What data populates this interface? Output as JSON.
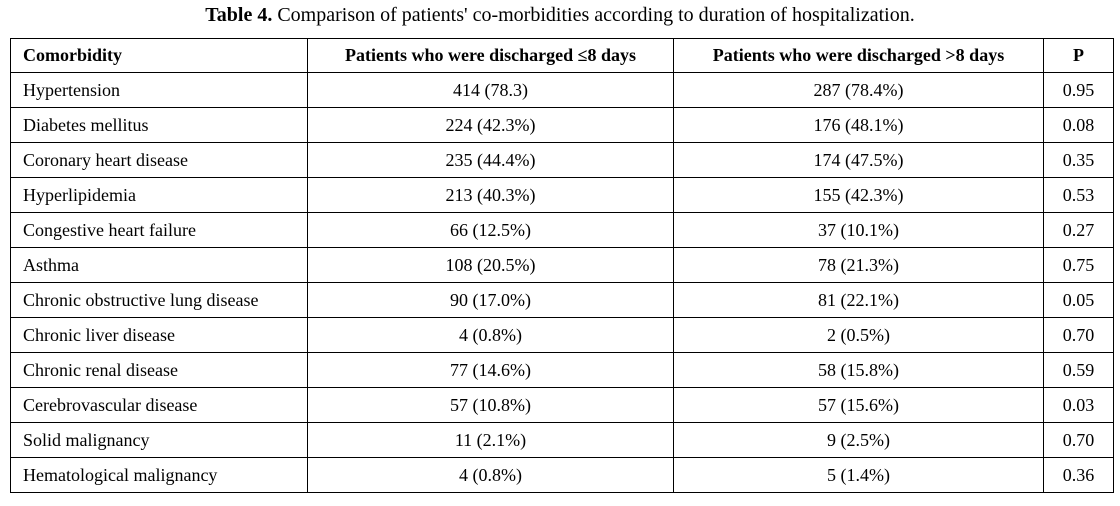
{
  "caption": {
    "label": "Table 4.",
    "text": "Comparison of patients' co-morbidities according to duration of hospitalization."
  },
  "table": {
    "headers": [
      "Comorbidity",
      "Patients who were discharged ≤8 days",
      "Patients who were discharged >8 days",
      "P"
    ],
    "rows": [
      [
        "Hypertension",
        "414 (78.3)",
        "287 (78.4%)",
        "0.95"
      ],
      [
        "Diabetes mellitus",
        "224 (42.3%)",
        "176 (48.1%)",
        "0.08"
      ],
      [
        "Coronary heart disease",
        "235 (44.4%)",
        "174 (47.5%)",
        "0.35"
      ],
      [
        "Hyperlipidemia",
        "213 (40.3%)",
        "155 (42.3%)",
        "0.53"
      ],
      [
        "Congestive heart failure",
        "66 (12.5%)",
        "37 (10.1%)",
        "0.27"
      ],
      [
        "Asthma",
        "108 (20.5%)",
        "78 (21.3%)",
        "0.75"
      ],
      [
        "Chronic obstructive lung disease",
        "90 (17.0%)",
        "81 (22.1%)",
        "0.05"
      ],
      [
        "Chronic liver disease",
        "4 (0.8%)",
        "2 (0.5%)",
        "0.70"
      ],
      [
        "Chronic renal disease",
        "77 (14.6%)",
        "58 (15.8%)",
        "0.59"
      ],
      [
        "Cerebrovascular disease",
        "57 (10.8%)",
        "57 (15.6%)",
        "0.03"
      ],
      [
        "Solid malignancy",
        "11 (2.1%)",
        "9 (2.5%)",
        "0.70"
      ],
      [
        "Hematological malignancy",
        "4 (0.8%)",
        "5 (1.4%)",
        "0.36"
      ]
    ]
  }
}
